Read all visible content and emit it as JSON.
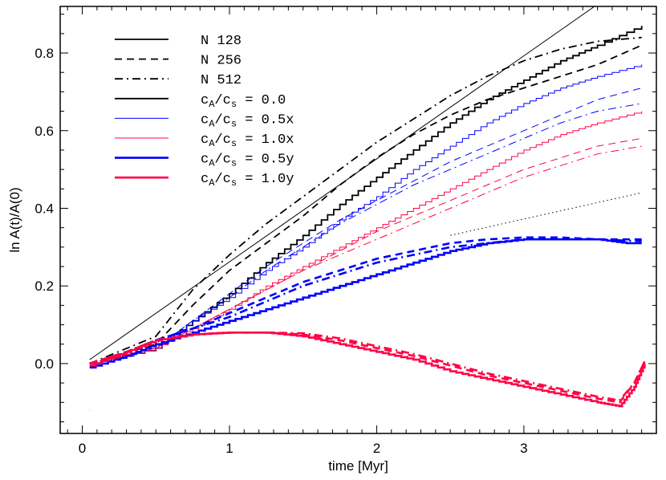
{
  "chart_data": {
    "type": "line",
    "title": "",
    "xlabel": "time [Myr]",
    "ylabel": "ln A(t)/A(0)",
    "xlim": [
      -0.15,
      3.9
    ],
    "ylim": [
      -0.18,
      0.92
    ],
    "grid": false,
    "legend_position": "top-left",
    "x_ticks": [
      {
        "value": 0,
        "label": "0"
      },
      {
        "value": 1,
        "label": "1"
      },
      {
        "value": 2,
        "label": "2"
      },
      {
        "value": 3,
        "label": "3"
      }
    ],
    "y_ticks": [
      {
        "value": 0.0,
        "label": "0.0"
      },
      {
        "value": 0.2,
        "label": "0.2"
      },
      {
        "value": 0.4,
        "label": "0.4"
      },
      {
        "value": 0.6,
        "label": "0.6"
      },
      {
        "value": 0.8,
        "label": "0.8"
      }
    ],
    "legend": [
      {
        "label": "N 128",
        "sub": "",
        "color": "#000000",
        "dash": "solid",
        "width": "normal"
      },
      {
        "label": "N 256",
        "sub": "",
        "color": "#000000",
        "dash": "dashed",
        "width": "normal"
      },
      {
        "label": "N 512",
        "sub": "",
        "color": "#000000",
        "dash": "dashdot",
        "width": "normal"
      },
      {
        "label": "c/c = 0.0",
        "sub": "A s",
        "color": "#000000",
        "dash": "solid",
        "width": "normal"
      },
      {
        "label": "c/c = 0.5x",
        "sub": "A s",
        "color": "#0000ff",
        "dash": "solid",
        "width": "thin"
      },
      {
        "label": "c/c = 1.0x",
        "sub": "A s",
        "color": "#ff0044",
        "dash": "solid",
        "width": "thin"
      },
      {
        "label": "c/c = 0.5y",
        "sub": "A s",
        "color": "#0000ff",
        "dash": "solid",
        "width": "thick"
      },
      {
        "label": "c/c = 1.0y",
        "sub": "A s",
        "color": "#ff0044",
        "dash": "solid",
        "width": "thick"
      }
    ],
    "series": [
      {
        "id": "reference-line",
        "color": "#000000",
        "dash": "solid",
        "width": "thin",
        "x": [
          0.05,
          3.48
        ],
        "y": [
          0.01,
          0.92
        ]
      },
      {
        "id": "reference-dotted",
        "color": "#000000",
        "dash": "dotted",
        "width": "thin",
        "x": [
          2.5,
          3.8
        ],
        "y": [
          0.33,
          0.44
        ]
      },
      {
        "id": "ca0-n128",
        "color": "#000000",
        "dash": "solid",
        "width": "normal",
        "step": true,
        "x": [
          0.05,
          0.5,
          0.75,
          1.0,
          1.25,
          1.5,
          1.75,
          2.0,
          2.25,
          2.5,
          2.75,
          3.0,
          3.25,
          3.5,
          3.8
        ],
        "y": [
          0.0,
          0.04,
          0.11,
          0.18,
          0.26,
          0.33,
          0.41,
          0.48,
          0.55,
          0.62,
          0.68,
          0.73,
          0.78,
          0.82,
          0.87
        ]
      },
      {
        "id": "ca0-n256",
        "color": "#000000",
        "dash": "dashed",
        "width": "normal",
        "x": [
          0.05,
          0.5,
          0.75,
          1.0,
          1.25,
          1.5,
          1.75,
          2.0,
          2.25,
          2.5,
          2.75,
          3.0,
          3.25,
          3.5,
          3.8
        ],
        "y": [
          0.0,
          0.05,
          0.15,
          0.24,
          0.31,
          0.38,
          0.46,
          0.53,
          0.59,
          0.64,
          0.68,
          0.71,
          0.74,
          0.77,
          0.82
        ]
      },
      {
        "id": "ca0-n512",
        "color": "#000000",
        "dash": "dashdot",
        "width": "normal",
        "x": [
          0.05,
          0.5,
          0.75,
          1.0,
          1.25,
          1.5,
          1.75,
          2.0,
          2.25,
          2.5,
          2.75,
          3.0,
          3.25,
          3.5,
          3.8
        ],
        "y": [
          0.0,
          0.07,
          0.19,
          0.28,
          0.36,
          0.43,
          0.5,
          0.57,
          0.63,
          0.69,
          0.74,
          0.78,
          0.81,
          0.83,
          0.84
        ]
      },
      {
        "id": "ca05x-n128",
        "color": "#0000ff",
        "dash": "solid",
        "width": "thin",
        "step": true,
        "x": [
          0.05,
          0.5,
          0.75,
          1.0,
          1.25,
          1.5,
          1.75,
          2.0,
          2.25,
          2.5,
          2.75,
          3.0,
          3.25,
          3.5,
          3.8
        ],
        "y": [
          0.0,
          0.04,
          0.11,
          0.17,
          0.24,
          0.3,
          0.37,
          0.43,
          0.5,
          0.56,
          0.62,
          0.67,
          0.71,
          0.74,
          0.77
        ]
      },
      {
        "id": "ca05x-n256",
        "color": "#0000ff",
        "dash": "dashed",
        "width": "thin",
        "x": [
          0.05,
          0.5,
          0.75,
          1.0,
          1.25,
          1.5,
          1.75,
          2.0,
          2.25,
          2.5,
          2.75,
          3.0,
          3.25,
          3.5,
          3.8
        ],
        "y": [
          0.0,
          0.04,
          0.11,
          0.18,
          0.25,
          0.31,
          0.37,
          0.42,
          0.47,
          0.52,
          0.56,
          0.6,
          0.64,
          0.68,
          0.71
        ]
      },
      {
        "id": "ca05x-n512",
        "color": "#0000ff",
        "dash": "dashdot",
        "width": "thin",
        "x": [
          0.05,
          0.5,
          0.75,
          1.0,
          1.25,
          1.5,
          1.75,
          2.0,
          2.25,
          2.5,
          2.75,
          3.0,
          3.25,
          3.5,
          3.8
        ],
        "y": [
          0.0,
          0.04,
          0.11,
          0.17,
          0.24,
          0.3,
          0.36,
          0.41,
          0.46,
          0.5,
          0.54,
          0.58,
          0.62,
          0.65,
          0.67
        ]
      },
      {
        "id": "ca10x-n128",
        "color": "#ff0044",
        "dash": "solid",
        "width": "thin",
        "step": true,
        "x": [
          0.05,
          0.5,
          0.75,
          1.0,
          1.25,
          1.5,
          1.75,
          2.0,
          2.25,
          2.5,
          2.75,
          3.0,
          3.25,
          3.5,
          3.8
        ],
        "y": [
          0.0,
          0.04,
          0.09,
          0.14,
          0.2,
          0.25,
          0.3,
          0.35,
          0.4,
          0.45,
          0.5,
          0.55,
          0.59,
          0.62,
          0.65
        ]
      },
      {
        "id": "ca10x-n256",
        "color": "#ff0044",
        "dash": "dashed",
        "width": "thin",
        "x": [
          0.05,
          0.5,
          0.75,
          1.0,
          1.25,
          1.5,
          1.75,
          2.0,
          2.25,
          2.5,
          2.75,
          3.0,
          3.25,
          3.5,
          3.8
        ],
        "y": [
          0.0,
          0.04,
          0.09,
          0.14,
          0.19,
          0.24,
          0.29,
          0.34,
          0.38,
          0.42,
          0.46,
          0.5,
          0.53,
          0.56,
          0.58
        ]
      },
      {
        "id": "ca10x-n512",
        "color": "#ff0044",
        "dash": "dashdot",
        "width": "thin",
        "x": [
          0.05,
          0.5,
          0.75,
          1.0,
          1.25,
          1.5,
          1.75,
          2.0,
          2.25,
          2.5,
          2.75,
          3.0,
          3.25,
          3.5,
          3.8
        ],
        "y": [
          0.0,
          0.04,
          0.09,
          0.14,
          0.19,
          0.24,
          0.28,
          0.32,
          0.36,
          0.4,
          0.44,
          0.48,
          0.51,
          0.54,
          0.56
        ]
      },
      {
        "id": "ca05y-n128",
        "color": "#0000ff",
        "dash": "solid",
        "width": "thick",
        "step": true,
        "x": [
          0.05,
          0.3,
          0.5,
          0.75,
          1.0,
          1.25,
          1.5,
          1.75,
          2.0,
          2.25,
          2.5,
          2.75,
          3.0,
          3.25,
          3.5,
          3.7,
          3.8
        ],
        "y": [
          -0.01,
          0.02,
          0.05,
          0.08,
          0.11,
          0.14,
          0.17,
          0.2,
          0.23,
          0.26,
          0.29,
          0.31,
          0.32,
          0.32,
          0.32,
          0.31,
          0.31
        ]
      },
      {
        "id": "ca05y-n256",
        "color": "#0000ff",
        "dash": "dashed",
        "width": "thick",
        "x": [
          0.05,
          0.3,
          0.5,
          0.75,
          1.0,
          1.25,
          1.5,
          1.75,
          2.0,
          2.25,
          2.5,
          2.75,
          3.0,
          3.25,
          3.5,
          3.8
        ],
        "y": [
          0.0,
          0.03,
          0.06,
          0.09,
          0.13,
          0.17,
          0.21,
          0.24,
          0.27,
          0.29,
          0.31,
          0.32,
          0.325,
          0.325,
          0.32,
          0.32
        ]
      },
      {
        "id": "ca05y-n512",
        "color": "#0000ff",
        "dash": "dashdot",
        "width": "thick",
        "x": [
          0.05,
          0.3,
          0.5,
          0.75,
          1.0,
          1.25,
          1.5,
          1.75,
          2.0,
          2.25,
          2.5,
          2.75,
          3.0,
          3.25,
          3.5,
          3.8
        ],
        "y": [
          0.0,
          0.03,
          0.06,
          0.09,
          0.12,
          0.16,
          0.2,
          0.23,
          0.26,
          0.28,
          0.3,
          0.31,
          0.32,
          0.32,
          0.32,
          0.315
        ]
      },
      {
        "id": "ca10y-n128",
        "color": "#ff0044",
        "dash": "solid",
        "width": "thick",
        "step": true,
        "x": [
          0.05,
          0.3,
          0.5,
          0.75,
          1.0,
          1.25,
          1.5,
          1.75,
          2.0,
          2.25,
          2.5,
          2.75,
          3.0,
          3.25,
          3.5,
          3.65,
          3.75,
          3.82
        ],
        "y": [
          -0.005,
          0.03,
          0.06,
          0.075,
          0.08,
          0.08,
          0.07,
          0.05,
          0.03,
          0.01,
          -0.02,
          -0.04,
          -0.06,
          -0.08,
          -0.1,
          -0.11,
          -0.06,
          0.0
        ]
      },
      {
        "id": "ca10y-n256",
        "color": "#ff0044",
        "dash": "dashed",
        "width": "thick",
        "x": [
          0.05,
          0.3,
          0.5,
          0.75,
          1.0,
          1.25,
          1.5,
          1.75,
          2.0,
          2.25,
          2.5,
          2.75,
          3.0,
          3.25,
          3.5,
          3.65,
          3.75,
          3.82
        ],
        "y": [
          0.0,
          0.03,
          0.06,
          0.075,
          0.08,
          0.08,
          0.075,
          0.06,
          0.04,
          0.02,
          -0.005,
          -0.03,
          -0.05,
          -0.07,
          -0.09,
          -0.1,
          -0.05,
          0.005
        ]
      },
      {
        "id": "ca10y-n512",
        "color": "#ff0044",
        "dash": "dashdot",
        "width": "thick",
        "x": [
          0.05,
          0.3,
          0.5,
          0.75,
          1.0,
          1.25,
          1.5,
          1.75,
          2.0,
          2.25,
          2.5,
          2.75,
          3.0,
          3.25,
          3.5,
          3.65,
          3.75,
          3.82
        ],
        "y": [
          0.0,
          0.03,
          0.06,
          0.075,
          0.08,
          0.08,
          0.078,
          0.065,
          0.045,
          0.025,
          0.0,
          -0.025,
          -0.045,
          -0.065,
          -0.085,
          -0.095,
          -0.05,
          0.005
        ]
      },
      {
        "id": "stray-point",
        "color": "#ff0044",
        "dash": "solid",
        "width": "thin",
        "x": [
          0.05,
          0.052
        ],
        "y": [
          -0.12,
          -0.12
        ]
      }
    ]
  }
}
